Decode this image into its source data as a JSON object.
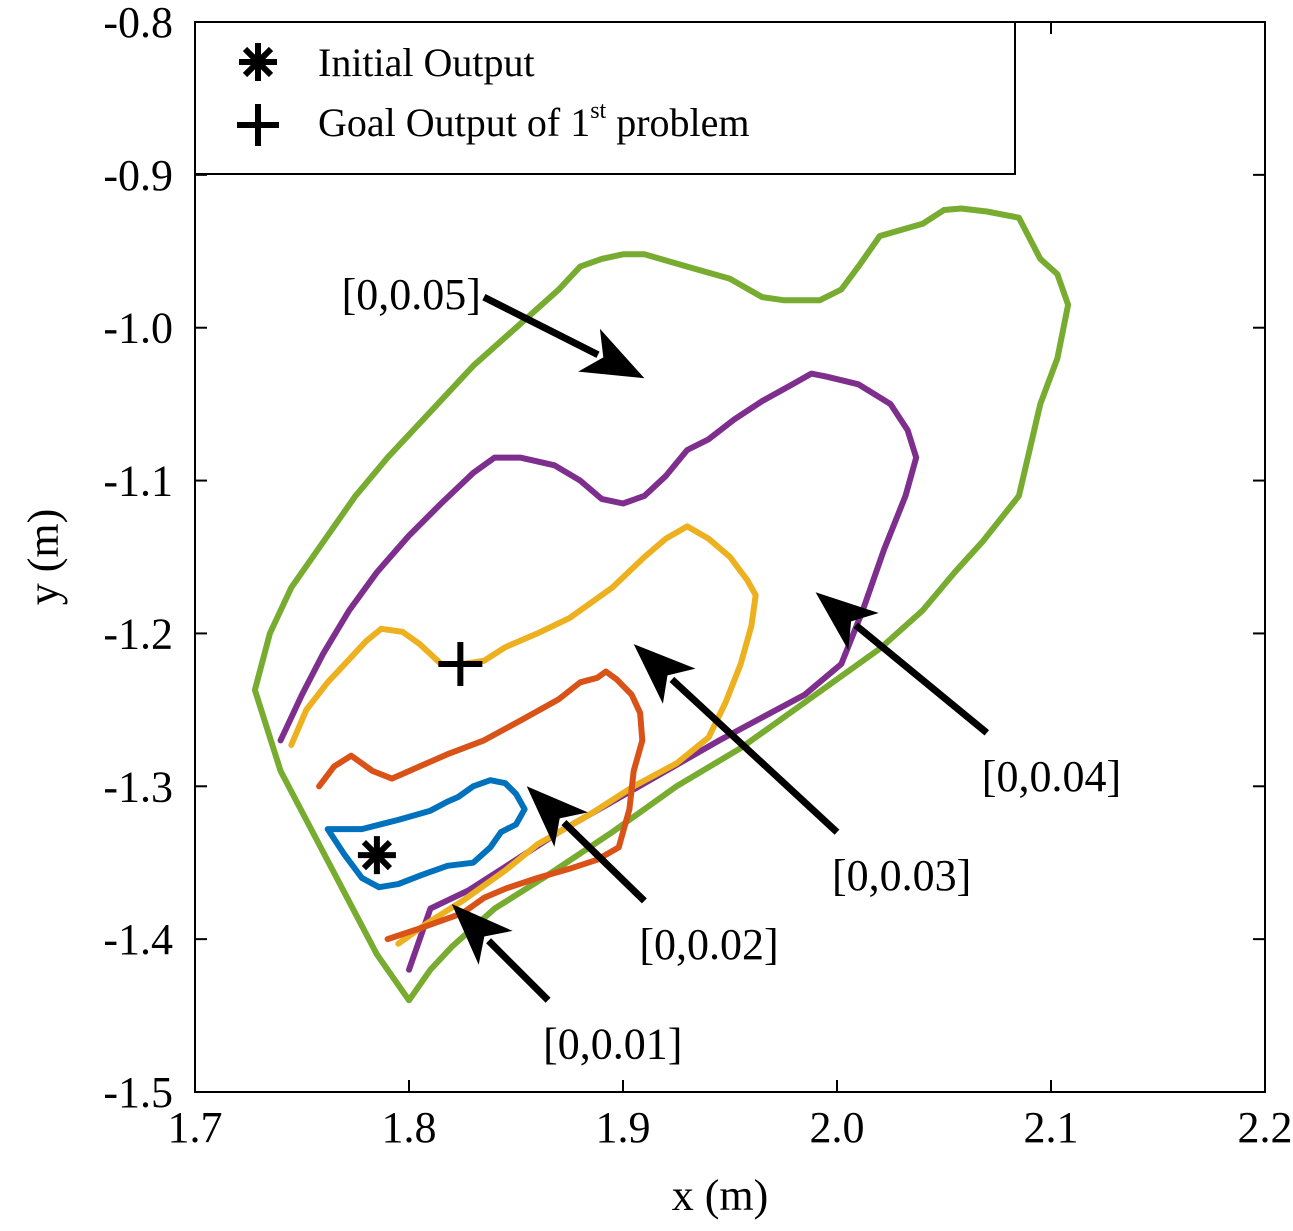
{
  "chart_data": {
    "type": "line",
    "title": "",
    "xlabel": "x (m)",
    "ylabel": "y (m)",
    "xlim": [
      1.7,
      2.2
    ],
    "ylim": [
      -1.5,
      -0.8
    ],
    "x_ticks": [
      1.7,
      1.8,
      1.9,
      2.0,
      2.1,
      2.2
    ],
    "x_tick_labels": [
      "1.7",
      "1.8",
      "1.9",
      "2.0",
      "2.1",
      "2.2"
    ],
    "y_ticks": [
      -0.8,
      -0.9,
      -1.0,
      -1.1,
      -1.2,
      -1.3,
      -1.4,
      -1.5
    ],
    "y_tick_labels": [
      "-0.8",
      "-0.9",
      "-1.0",
      "-1.1",
      "-1.2",
      "-1.3",
      "-1.4",
      "-1.5"
    ],
    "grid": false,
    "legend_position": "top-left",
    "legend": [
      {
        "marker": "asterisk",
        "label": "Initial Output"
      },
      {
        "marker": "plus",
        "label_main": "Goal Output of 1",
        "label_sup": "st",
        "label_tail": " problem"
      }
    ],
    "markers": [
      {
        "name": "Initial Output",
        "marker": "asterisk",
        "x": 1.785,
        "y": -1.345
      },
      {
        "name": "Goal Output of 1st problem",
        "marker": "plus",
        "x": 1.824,
        "y": -1.22
      }
    ],
    "series": [
      {
        "name": "[0,0.01]",
        "color": "#0072BD",
        "x": [
          1.762,
          1.778,
          1.795,
          1.81,
          1.818,
          1.823,
          1.83,
          1.838,
          1.845,
          1.85,
          1.854,
          1.85,
          1.843,
          1.838,
          1.83,
          1.818,
          1.806,
          1.795,
          1.786,
          1.778,
          1.77,
          1.762
        ],
        "y": [
          -1.328,
          -1.328,
          -1.322,
          -1.316,
          -1.31,
          -1.307,
          -1.3,
          -1.296,
          -1.298,
          -1.305,
          -1.315,
          -1.325,
          -1.33,
          -1.34,
          -1.35,
          -1.352,
          -1.358,
          -1.364,
          -1.366,
          -1.36,
          -1.345,
          -1.328
        ]
      },
      {
        "name": "[0,0.02]",
        "color": "#D95319",
        "x": [
          1.758,
          1.765,
          1.773,
          1.783,
          1.792,
          1.805,
          1.818,
          1.835,
          1.852,
          1.87,
          1.88,
          1.888,
          1.892,
          1.897,
          1.904,
          1.908,
          1.909,
          1.905,
          1.903,
          1.898,
          1.888,
          1.875,
          1.86,
          1.845,
          1.835,
          1.825,
          1.805,
          1.79
        ],
        "y": [
          -1.3,
          -1.287,
          -1.28,
          -1.29,
          -1.295,
          -1.287,
          -1.279,
          -1.27,
          -1.257,
          -1.243,
          -1.232,
          -1.229,
          -1.225,
          -1.23,
          -1.24,
          -1.252,
          -1.27,
          -1.29,
          -1.315,
          -1.34,
          -1.348,
          -1.354,
          -1.36,
          -1.367,
          -1.373,
          -1.383,
          -1.393,
          -1.4
        ]
      },
      {
        "name": "[0,0.03]",
        "color": "#EDB120",
        "x": [
          1.745,
          1.752,
          1.762,
          1.772,
          1.78,
          1.787,
          1.797,
          1.805,
          1.815,
          1.825,
          1.835,
          1.845,
          1.86,
          1.875,
          1.895,
          1.91,
          1.92,
          1.93,
          1.94,
          1.95,
          1.958,
          1.962,
          1.96,
          1.955,
          1.948,
          1.94,
          1.925,
          1.905,
          1.885,
          1.86,
          1.845,
          1.825,
          1.808,
          1.795
        ],
        "y": [
          -1.273,
          -1.25,
          -1.232,
          -1.217,
          -1.205,
          -1.197,
          -1.199,
          -1.207,
          -1.22,
          -1.22,
          -1.218,
          -1.209,
          -1.2,
          -1.19,
          -1.17,
          -1.15,
          -1.138,
          -1.13,
          -1.138,
          -1.15,
          -1.165,
          -1.175,
          -1.195,
          -1.22,
          -1.245,
          -1.268,
          -1.285,
          -1.3,
          -1.318,
          -1.338,
          -1.355,
          -1.375,
          -1.39,
          -1.403
        ]
      },
      {
        "name": "[0,0.04]",
        "color": "#7E2F8E",
        "x": [
          1.74,
          1.75,
          1.76,
          1.772,
          1.785,
          1.8,
          1.815,
          1.83,
          1.84,
          1.852,
          1.868,
          1.88,
          1.89,
          1.9,
          1.91,
          1.92,
          1.93,
          1.94,
          1.952,
          1.965,
          1.978,
          1.988,
          1.995,
          2.01,
          2.025,
          2.033,
          2.037,
          2.032,
          2.022,
          2.012,
          2.002,
          1.985,
          1.965,
          1.945,
          1.92,
          1.895,
          1.87,
          1.848,
          1.828,
          1.81,
          1.8
        ],
        "y": [
          -1.27,
          -1.24,
          -1.213,
          -1.185,
          -1.16,
          -1.136,
          -1.115,
          -1.095,
          -1.085,
          -1.085,
          -1.09,
          -1.1,
          -1.112,
          -1.115,
          -1.11,
          -1.097,
          -1.08,
          -1.073,
          -1.06,
          -1.048,
          -1.038,
          -1.03,
          -1.032,
          -1.037,
          -1.05,
          -1.067,
          -1.085,
          -1.11,
          -1.145,
          -1.185,
          -1.22,
          -1.24,
          -1.255,
          -1.27,
          -1.29,
          -1.31,
          -1.33,
          -1.35,
          -1.368,
          -1.38,
          -1.42
        ]
      },
      {
        "name": "[0,0.05]",
        "color": "#77AC30",
        "x": [
          1.728,
          1.735,
          1.745,
          1.76,
          1.775,
          1.79,
          1.81,
          1.83,
          1.85,
          1.87,
          1.88,
          1.89,
          1.9,
          1.91,
          1.93,
          1.95,
          1.965,
          1.975,
          1.992,
          2.002,
          2.01,
          2.02,
          2.04,
          2.05,
          2.058,
          2.07,
          2.085,
          2.095,
          2.103,
          2.108,
          2.103,
          2.095,
          2.085,
          2.068,
          2.055,
          2.04,
          2.02,
          2.0,
          1.98,
          1.955,
          1.925,
          1.895,
          1.865,
          1.84,
          1.82,
          1.81,
          1.8,
          1.785,
          1.77,
          1.755,
          1.74,
          1.728
        ],
        "y": [
          -1.237,
          -1.2,
          -1.17,
          -1.14,
          -1.11,
          -1.085,
          -1.055,
          -1.025,
          -1.0,
          -0.975,
          -0.96,
          -0.955,
          -0.952,
          -0.952,
          -0.96,
          -0.968,
          -0.98,
          -0.982,
          -0.982,
          -0.975,
          -0.96,
          -0.94,
          -0.932,
          -0.923,
          -0.922,
          -0.924,
          -0.928,
          -0.955,
          -0.965,
          -0.985,
          -1.02,
          -1.05,
          -1.11,
          -1.14,
          -1.16,
          -1.185,
          -1.21,
          -1.23,
          -1.25,
          -1.275,
          -1.3,
          -1.33,
          -1.358,
          -1.38,
          -1.405,
          -1.42,
          -1.44,
          -1.41,
          -1.37,
          -1.33,
          -1.29,
          -1.237
        ]
      }
    ],
    "annotations": [
      {
        "label": "[0,0.05]",
        "from": [
          1.835,
          -0.98
        ],
        "to": [
          1.91,
          -1.033
        ]
      },
      {
        "label": "[0,0.04]",
        "from": [
          2.07,
          -1.265
        ],
        "to": [
          1.99,
          -1.173
        ]
      },
      {
        "label": "[0,0.03]",
        "from": [
          2.0,
          -1.33
        ],
        "to": [
          1.905,
          -1.207
        ]
      },
      {
        "label": "[0,0.02]",
        "from": [
          1.91,
          -1.375
        ],
        "to": [
          1.855,
          -1.3
        ]
      },
      {
        "label": "[0,0.01]",
        "from": [
          1.865,
          -1.44
        ],
        "to": [
          1.82,
          -1.377
        ]
      }
    ]
  }
}
